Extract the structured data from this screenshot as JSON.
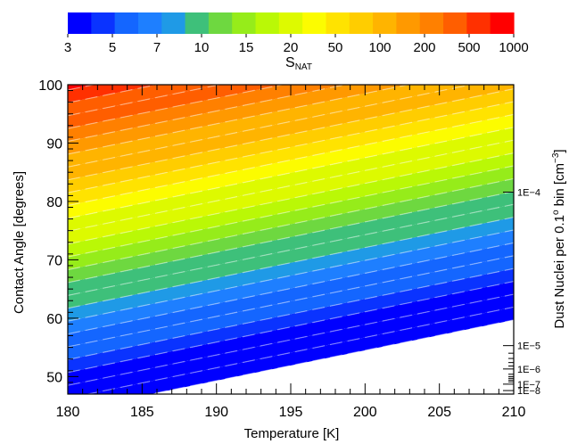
{
  "chart_data": {
    "type": "heatmap",
    "title": "",
    "xlabel": "Temperature [K]",
    "ylabel": "Contact Angle [degrees]",
    "right_axis_label_parts": [
      "Dust Nuclei per 0.1",
      "o",
      " bin [cm",
      "−3",
      "]"
    ],
    "xlim": [
      180,
      210
    ],
    "ylim": [
      47,
      100
    ],
    "x_ticks": [
      180,
      185,
      190,
      195,
      200,
      205,
      210
    ],
    "y_ticks": [
      50,
      60,
      70,
      80,
      90,
      100
    ],
    "colorbar": {
      "label_main": "S",
      "label_sub": "NAT",
      "tick_labels": [
        "3",
        "5",
        "7",
        "10",
        "15",
        "20",
        "50",
        "100",
        "200",
        "500",
        "1000"
      ],
      "colors": [
        "#0000ff",
        "#0a33ff",
        "#1466ff",
        "#1e7fff",
        "#1f9ae6",
        "#3ec07a",
        "#6ed840",
        "#96ec1a",
        "#baf806",
        "#ddfa00",
        "#fcfc00",
        "#ffe300",
        "#ffcd00",
        "#ffb400",
        "#ff9900",
        "#ff8000",
        "#ff5e00",
        "#ff3000",
        "#ff0000"
      ]
    },
    "contour": {
      "level_count": 24,
      "level_spacing_degrees": 2.2,
      "slope_degrees_per_K": 0.52,
      "intercept_degrees_at_180K": 48.5
    },
    "right_axis": {
      "tick_labels": [
        "1E−4",
        "1E−5",
        "1E−6",
        "1E−7",
        "1E−8"
      ],
      "tick_angles": [
        81.6,
        55.3,
        51.3,
        48.7,
        47.6
      ],
      "minor_tick_angles": [
        54.0,
        53.1,
        52.4,
        51.8,
        50.4,
        50.0,
        49.7,
        49.4,
        49.1
      ]
    }
  }
}
